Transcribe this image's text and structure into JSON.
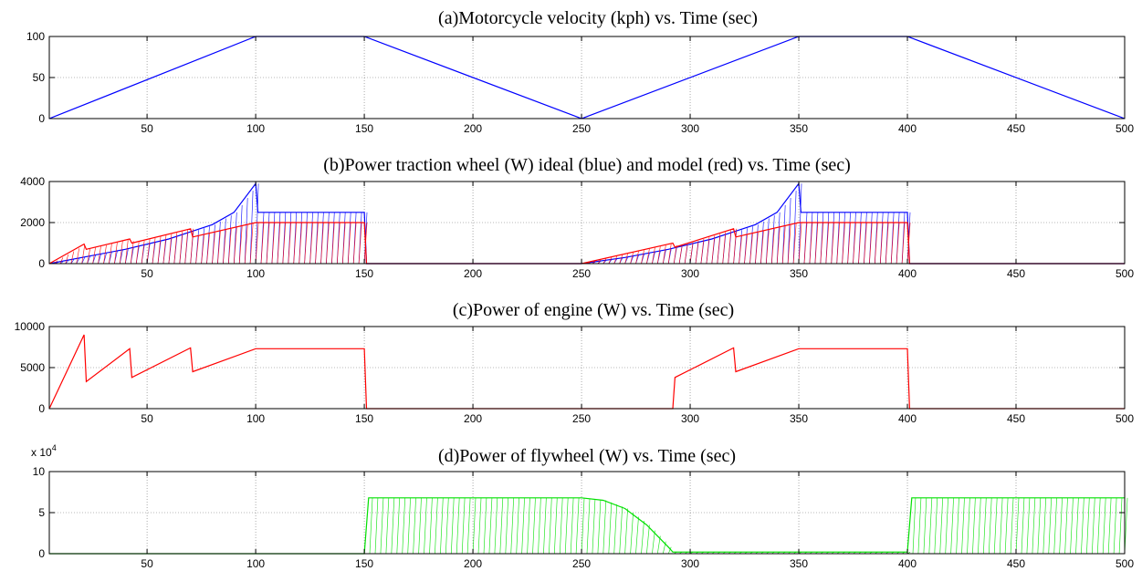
{
  "colors": {
    "blue": "#0000ff",
    "red": "#ff0000",
    "green": "#00e000",
    "axes": "#000000",
    "grid": "#808080"
  },
  "chart_data": [
    {
      "type": "line",
      "title": "(a)Motorcycle velocity (kph) vs. Time (sec)",
      "xlabel": "",
      "ylabel": "",
      "xlim": [
        5,
        500
      ],
      "ylim": [
        0,
        100
      ],
      "x_ticks": [
        "50",
        "100",
        "150",
        "200",
        "250",
        "300",
        "350",
        "400",
        "450",
        "500"
      ],
      "y_ticks": [
        "0",
        "50",
        "100"
      ],
      "series": [
        {
          "color": "#0000ff",
          "x": [
            5,
            100,
            150,
            250,
            350,
            400,
            500
          ],
          "y": [
            0,
            100,
            100,
            0,
            100,
            100,
            0
          ]
        }
      ]
    },
    {
      "type": "line",
      "title": "(b)Power traction wheel (W) ideal (blue) and model (red) vs. Time (sec)",
      "xlabel": "",
      "ylabel": "",
      "xlim": [
        5,
        500
      ],
      "ylim": [
        0,
        4000
      ],
      "x_ticks": [
        "50",
        "100",
        "150",
        "200",
        "250",
        "300",
        "350",
        "400",
        "450",
        "500"
      ],
      "y_ticks": [
        "0",
        "2000",
        "4000"
      ],
      "series": [
        {
          "color": "#0000ff",
          "x": [
            5,
            20,
            40,
            60,
            80,
            90,
            100,
            101,
            150,
            151,
            250,
            270,
            290,
            310,
            330,
            340,
            350,
            351,
            400,
            401,
            500
          ],
          "y": [
            0,
            300,
            700,
            1200,
            1900,
            2500,
            3900,
            2500,
            2500,
            0,
            0,
            300,
            700,
            1200,
            1900,
            2500,
            3900,
            2500,
            2500,
            0,
            0
          ]
        },
        {
          "color": "#ff0000",
          "x": [
            5,
            21,
            22,
            42,
            43,
            70,
            71,
            100,
            150,
            151,
            250,
            292,
            293,
            320,
            321,
            350,
            400,
            401,
            500
          ],
          "y": [
            0,
            950,
            700,
            1200,
            1000,
            1700,
            1300,
            2000,
            2000,
            0,
            0,
            1000,
            800,
            1700,
            1300,
            2000,
            2000,
            0,
            0
          ]
        }
      ]
    },
    {
      "type": "line",
      "title": "(c)Power of engine (W) vs. Time (sec)",
      "xlabel": "",
      "ylabel": "",
      "xlim": [
        5,
        500
      ],
      "ylim": [
        0,
        10000
      ],
      "x_ticks": [
        "50",
        "100",
        "150",
        "200",
        "250",
        "300",
        "350",
        "400",
        "450",
        "500"
      ],
      "y_ticks": [
        "0",
        "5000",
        "10000"
      ],
      "series": [
        {
          "color": "#ff0000",
          "x": [
            5,
            21,
            22,
            42,
            43,
            70,
            71,
            100,
            150,
            151,
            292,
            293,
            320,
            321,
            350,
            400,
            401,
            500
          ],
          "y": [
            0,
            9000,
            3300,
            7300,
            3800,
            7400,
            4500,
            7300,
            7300,
            0,
            0,
            3800,
            7400,
            4500,
            7300,
            7300,
            0,
            0
          ]
        }
      ]
    },
    {
      "type": "line",
      "title": "(d)Power of flywheel (W) vs. Time (sec)",
      "xlabel": "",
      "ylabel": "",
      "y_multiplier": "x 10",
      "y_multiplier_exp": "4",
      "xlim": [
        5,
        500
      ],
      "ylim": [
        0,
        10
      ],
      "x_ticks": [
        "50",
        "100",
        "150",
        "200",
        "250",
        "300",
        "350",
        "400",
        "450",
        "500"
      ],
      "y_ticks": [
        "0",
        "5",
        "10"
      ],
      "series": [
        {
          "color": "#00e000",
          "x": [
            5,
            150,
            152,
            250,
            260,
            270,
            280,
            290,
            292,
            400,
            402,
            500
          ],
          "y": [
            0,
            0,
            6.8,
            6.8,
            6.5,
            5.5,
            3.5,
            0.8,
            0.2,
            0.2,
            6.8,
            6.8
          ]
        }
      ]
    }
  ]
}
